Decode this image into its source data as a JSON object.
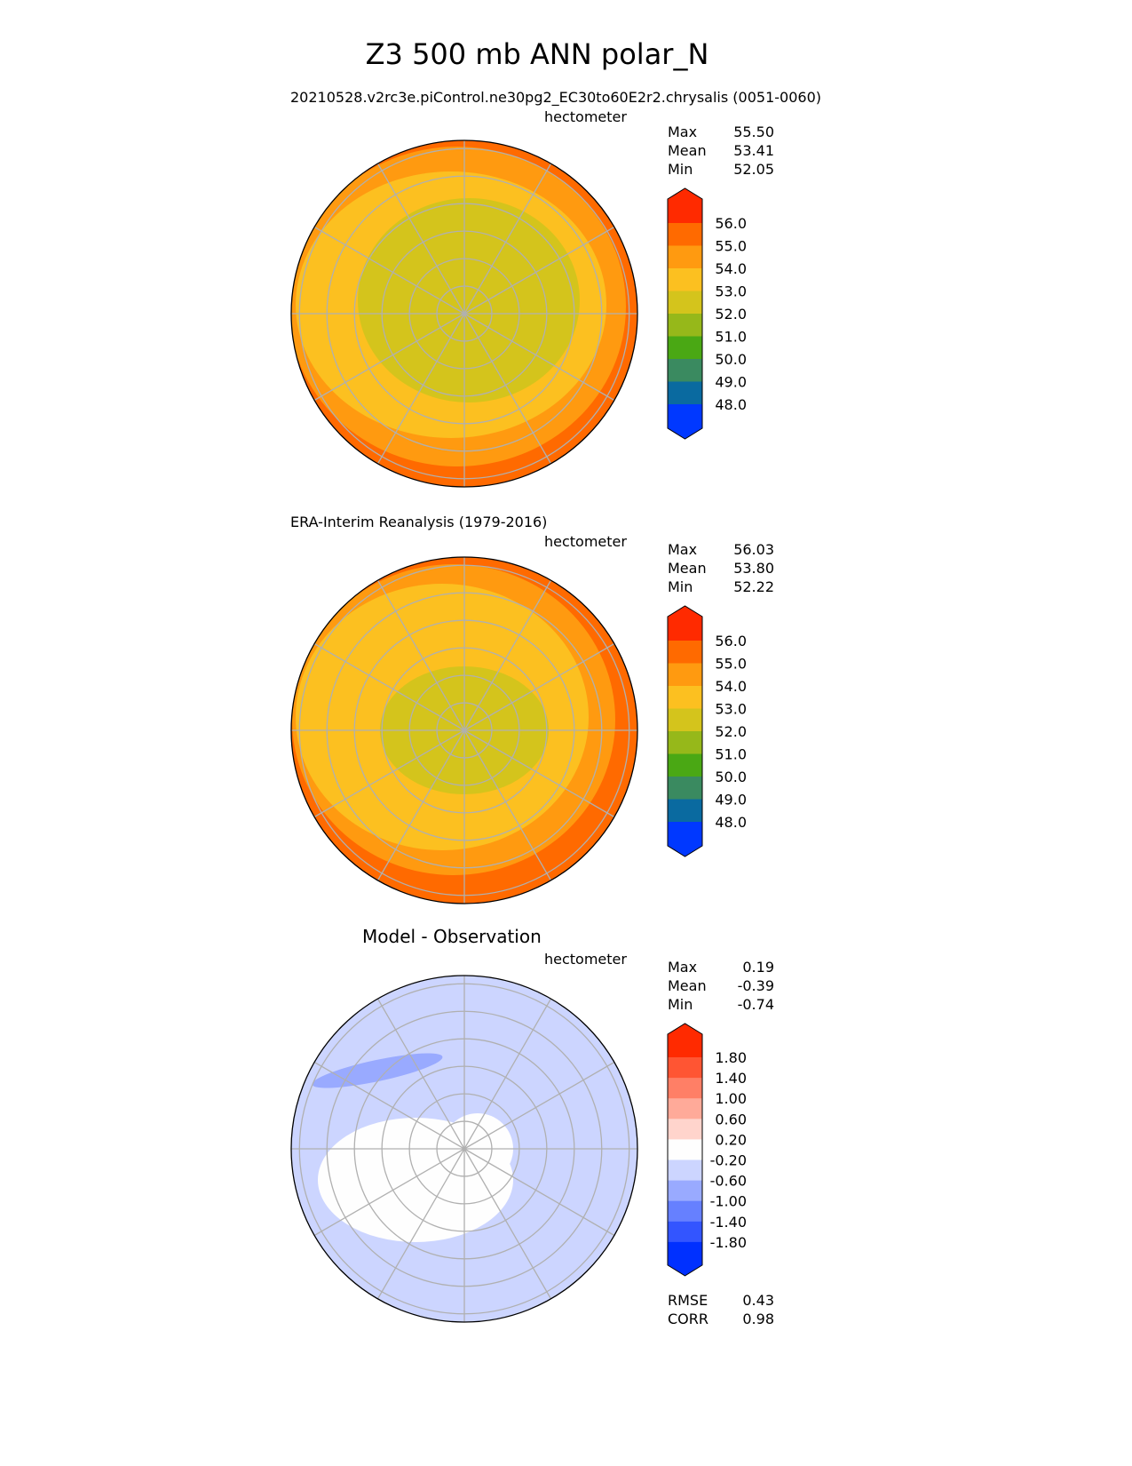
{
  "title": "Z3 500 mb ANN polar_N",
  "panels": [
    {
      "title_left": "20210528.v2rc3e.piControl.ne30pg2_EC30to60E2r2.chrysalis (0051-0060)",
      "title_right": "hectometer",
      "stats": {
        "max_label": "Max",
        "max": "55.50",
        "mean_label": "Mean",
        "mean": "53.41",
        "min_label": "Min",
        "min": "52.05"
      }
    },
    {
      "title_left": "ERA-Interim Reanalysis (1979-2016)",
      "title_right": "hectometer",
      "stats": {
        "max_label": "Max",
        "max": "56.03",
        "mean_label": "Mean",
        "mean": "53.80",
        "min_label": "Min",
        "min": "52.22"
      }
    },
    {
      "title_center": "Model - Observation",
      "title_right": "hectometer",
      "stats": {
        "max_label": "Max",
        "max": "0.19",
        "mean_label": "Mean",
        "mean": "-0.39",
        "min_label": "Min",
        "min": "-0.74"
      },
      "metrics": {
        "rmse_label": "RMSE",
        "rmse": "0.43",
        "corr_label": "CORR",
        "corr": "0.98"
      }
    }
  ],
  "chart_data": [
    {
      "type": "heatmap",
      "projection": "north polar stereographic",
      "units": "hectometer",
      "colorbar": {
        "ticks": [
          "56.0",
          "55.0",
          "54.0",
          "53.0",
          "52.0",
          "51.0",
          "50.0",
          "49.0",
          "48.0"
        ],
        "colors": [
          "#ff2a00",
          "#ff6a00",
          "#ff9a10",
          "#fcc020",
          "#d4c41c",
          "#96b81a",
          "#4aa814",
          "#3a8a60",
          "#0a6aa0",
          "#0038ff"
        ],
        "extend": "both"
      },
      "max": 55.5,
      "mean": 53.41,
      "min": 52.05
    },
    {
      "type": "heatmap",
      "projection": "north polar stereographic",
      "units": "hectometer",
      "colorbar": {
        "ticks": [
          "56.0",
          "55.0",
          "54.0",
          "53.0",
          "52.0",
          "51.0",
          "50.0",
          "49.0",
          "48.0"
        ],
        "colors": [
          "#ff2a00",
          "#ff6a00",
          "#ff9a10",
          "#fcc020",
          "#d4c41c",
          "#96b81a",
          "#4aa814",
          "#3a8a60",
          "#0a6aa0",
          "#0038ff"
        ],
        "extend": "both"
      },
      "max": 56.03,
      "mean": 53.8,
      "min": 52.22
    },
    {
      "type": "heatmap",
      "projection": "north polar stereographic",
      "units": "hectometer",
      "colorbar": {
        "ticks": [
          "1.80",
          "1.40",
          "1.00",
          "0.60",
          "0.20",
          "-0.20",
          "-0.60",
          "-1.00",
          "-1.40",
          "-1.80"
        ],
        "colors": [
          "#ff2a00",
          "#ff5533",
          "#ff7f66",
          "#ffaa99",
          "#ffd4cc",
          "#fefefe",
          "#ccd5ff",
          "#99aaff",
          "#6680ff",
          "#3355ff",
          "#0030ff"
        ],
        "extend": "both"
      },
      "max": 0.19,
      "mean": -0.39,
      "min": -0.74,
      "rmse": 0.43,
      "corr": 0.98
    }
  ]
}
